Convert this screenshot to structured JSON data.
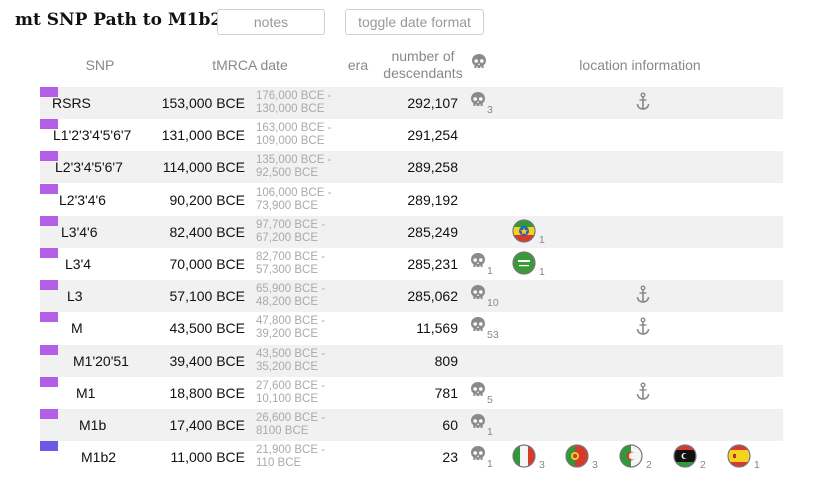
{
  "page": {
    "title": "mt SNP Path to M1b2"
  },
  "toolbar": {
    "notes_label": "notes",
    "toggle_label": "toggle date format"
  },
  "headers": {
    "snp": "SNP",
    "tmrca": "tMRCA date",
    "era": "era",
    "desc_line1": "number of",
    "desc_line2": "descendants",
    "location": "location information"
  },
  "colors": {
    "era_purple": "#b35ee6",
    "era_indigo": "#6a5ae6",
    "row_shade": "#f1f1f1"
  },
  "rows": [
    {
      "snp": "RSRS",
      "tmrca": "153,000 BCE",
      "range_hi": "176,000 BCE -",
      "range_lo": "130,000 BCE",
      "desc": "292,107",
      "skull": "3",
      "anchor": true,
      "flags": []
    },
    {
      "snp": "L1'2'3'4'5'6'7",
      "tmrca": "131,000 BCE",
      "range_hi": "163,000 BCE -",
      "range_lo": "109,000 BCE",
      "desc": "291,254",
      "skull": null,
      "anchor": false,
      "flags": []
    },
    {
      "snp": "L2'3'4'5'6'7",
      "tmrca": "114,000 BCE",
      "range_hi": "135,000 BCE -",
      "range_lo": "92,500 BCE",
      "desc": "289,258",
      "skull": null,
      "anchor": false,
      "flags": []
    },
    {
      "snp": "L2'3'4'6",
      "tmrca": "90,200 BCE",
      "range_hi": "106,000 BCE -",
      "range_lo": "73,900 BCE",
      "desc": "289,192",
      "skull": null,
      "anchor": false,
      "flags": []
    },
    {
      "snp": "L3'4'6",
      "tmrca": "82,400 BCE",
      "range_hi": "97,700 BCE -",
      "range_lo": "67,200 BCE",
      "desc": "285,249",
      "skull": null,
      "anchor": false,
      "flags": [
        {
          "icon": "ethiopia-flag-icon",
          "count": "1"
        }
      ]
    },
    {
      "snp": "L3'4",
      "tmrca": "70,000 BCE",
      "range_hi": "82,700 BCE -",
      "range_lo": "57,300 BCE",
      "desc": "285,231",
      "skull": "1",
      "anchor": false,
      "flags": [
        {
          "icon": "saudi-arabia-flag-icon",
          "count": "1"
        }
      ]
    },
    {
      "snp": "L3",
      "tmrca": "57,100 BCE",
      "range_hi": "65,900 BCE -",
      "range_lo": "48,200 BCE",
      "desc": "285,062",
      "skull": "10",
      "anchor": true,
      "flags": []
    },
    {
      "snp": "M",
      "tmrca": "43,500 BCE",
      "range_hi": "47,800 BCE -",
      "range_lo": "39,200 BCE",
      "desc": "11,569",
      "skull": "53",
      "anchor": true,
      "flags": []
    },
    {
      "snp": "M1'20'51",
      "tmrca": "39,400 BCE",
      "range_hi": "43,500 BCE -",
      "range_lo": "35,200 BCE",
      "desc": "809",
      "skull": null,
      "anchor": false,
      "flags": []
    },
    {
      "snp": "M1",
      "tmrca": "18,800 BCE",
      "range_hi": "27,600 BCE -",
      "range_lo": "10,100 BCE",
      "desc": "781",
      "skull": "5",
      "anchor": true,
      "flags": []
    },
    {
      "snp": "M1b",
      "tmrca": "17,400 BCE",
      "range_hi": "26,600 BCE -",
      "range_lo": "8100 BCE",
      "desc": "60",
      "skull": "1",
      "anchor": false,
      "flags": []
    },
    {
      "snp": "M1b2",
      "tmrca": "11,000 BCE",
      "range_hi": "21,900 BCE -",
      "range_lo": "110 BCE",
      "desc": "23",
      "skull": "1",
      "anchor": false,
      "flags": [
        {
          "icon": "italy-flag-icon",
          "count": "3"
        },
        {
          "icon": "portugal-flag-icon",
          "count": "3"
        },
        {
          "icon": "algeria-flag-icon",
          "count": "2"
        },
        {
          "icon": "libya-flag-icon",
          "count": "2"
        },
        {
          "icon": "spain-flag-icon",
          "count": "1"
        }
      ]
    }
  ]
}
